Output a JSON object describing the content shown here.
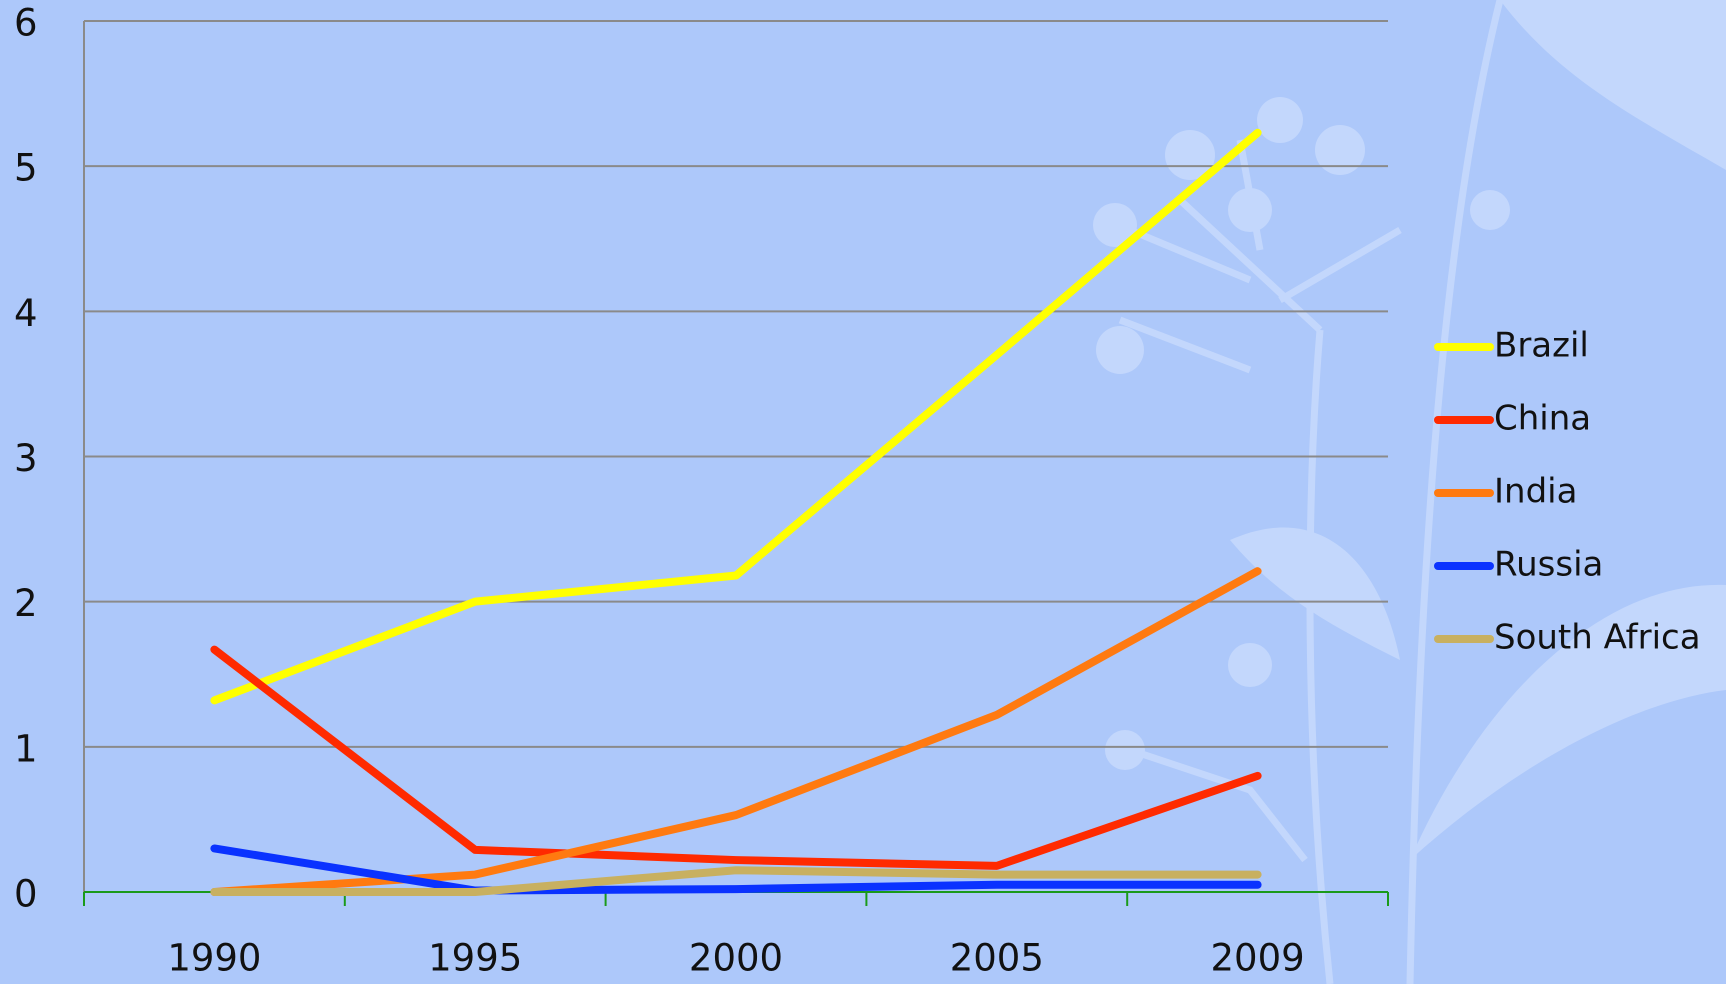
{
  "chart_data": {
    "type": "line",
    "categories": [
      "1990",
      "1995",
      "2000",
      "2005",
      "2009"
    ],
    "series": [
      {
        "name": "Brazil",
        "color": "#ffff00",
        "values": [
          1.32,
          2.0,
          2.18,
          3.7,
          5.23
        ]
      },
      {
        "name": "China",
        "color": "#ff2a00",
        "values": [
          1.67,
          0.29,
          0.22,
          0.18,
          0.8
        ]
      },
      {
        "name": "India",
        "color": "#ff7a10",
        "values": [
          0,
          0.12,
          0.53,
          1.22,
          2.21
        ]
      },
      {
        "name": "Russia",
        "color": "#0a32ff",
        "values": [
          0.3,
          0.01,
          0.02,
          0.05,
          0.05
        ]
      },
      {
        "name": "South Africa",
        "color": "#c8b060",
        "values": [
          0,
          0,
          0.15,
          0.12,
          0.12
        ]
      }
    ],
    "ylim": [
      0,
      6
    ],
    "yticks": [
      0,
      1,
      2,
      3,
      4,
      5,
      6
    ],
    "grid": true,
    "legend": "right"
  }
}
